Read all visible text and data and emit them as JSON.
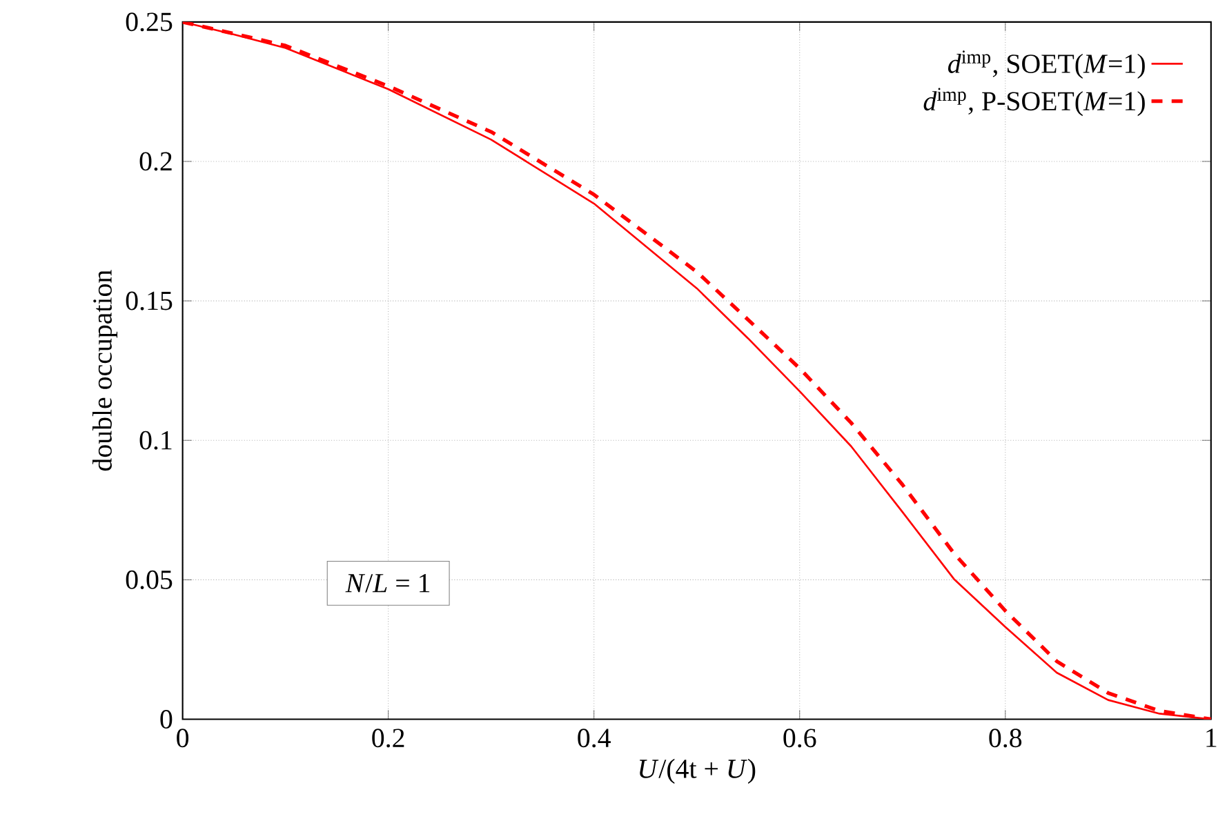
{
  "chart_data": {
    "type": "line",
    "xlabel": "*U*/(4t + *U*)",
    "ylabel": "double occupation",
    "x": [
      0,
      0.05,
      0.1,
      0.2,
      0.3,
      0.4,
      0.5,
      0.55,
      0.6,
      0.65,
      0.7,
      0.75,
      0.8,
      0.85,
      0.9,
      0.95,
      1
    ],
    "series": [
      {
        "name": "*d*$^{imp}$, SOET(*M*=1)",
        "color": "#ff0000",
        "line_style": "solid",
        "values": [
          0.25,
          0.2455,
          0.2407,
          0.2259,
          0.2078,
          0.1849,
          0.1545,
          0.1365,
          0.1176,
          0.0979,
          0.0743,
          0.0503,
          0.0331,
          0.0167,
          0.0069,
          0.002,
          0
        ]
      },
      {
        "name": "*d*$^{imp}$, P-SOET(*M*=1)",
        "color": "#ff0000",
        "line_style": "dashed",
        "values": [
          0.25,
          0.2458,
          0.2415,
          0.227,
          0.2106,
          0.1881,
          0.1604,
          0.1432,
          0.1258,
          0.1063,
          0.0841,
          0.0595,
          0.0389,
          0.0208,
          0.0094,
          0.003,
          0
        ]
      }
    ],
    "xlim": [
      0,
      1
    ],
    "ylim": [
      0,
      0.25
    ],
    "xticks": [
      0,
      0.2,
      0.4,
      0.6,
      0.8,
      1
    ],
    "yticks": [
      0,
      0.05,
      0.1,
      0.15,
      0.2,
      0.25
    ],
    "grid": true,
    "legend": "top right",
    "annotations": [
      "*N*/*L* = 1"
    ]
  }
}
